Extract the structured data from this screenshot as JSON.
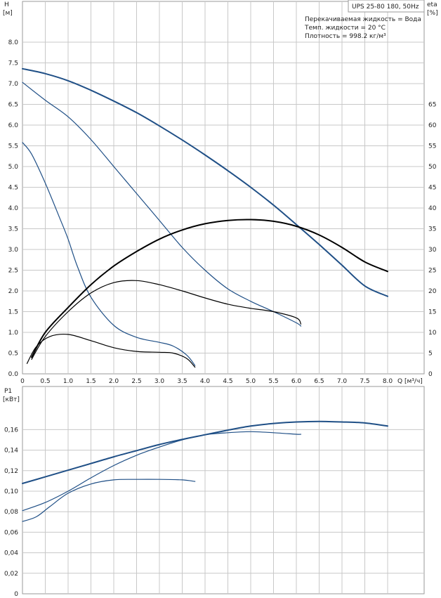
{
  "colors": {
    "pump": "#1f4f86",
    "efficiency": "#000000",
    "grid": "#c8c8c8"
  },
  "chart_data": [
    {
      "type": "line",
      "id": "head-eta",
      "model_label": "UPS 25-80 180, 50Hz",
      "annotations": [
        "Перекачиваемая жидкость = Вода",
        "Темп. жидкости = 20 °C",
        "Плотность = 998.2 кг/м³"
      ],
      "ylabel": "H",
      "yunit": "[м]",
      "y2label": "eta",
      "y2unit": "[%]",
      "xlabel": "Q",
      "xunit": "[м³/ч]",
      "xlim": [
        0,
        8.8
      ],
      "ylim": [
        0,
        8.8
      ],
      "y2lim": [
        0,
        88
      ],
      "xticks": [
        "0",
        "0.5",
        "1.0",
        "1.5",
        "2.0",
        "2.5",
        "3.0",
        "3.5",
        "4.0",
        "4.5",
        "5.0",
        "5.5",
        "6.0",
        "6.5",
        "7.0",
        "7.5",
        "8.0"
      ],
      "yticks": [
        "0.0",
        "0.5",
        "1.0",
        "1.5",
        "2.0",
        "2.5",
        "3.0",
        "3.5",
        "4.0",
        "4.5",
        "5.0",
        "5.5",
        "6.0",
        "6.5",
        "7.0",
        "7.5",
        "8.0"
      ],
      "y2ticks": [
        "0",
        "5",
        "10",
        "15",
        "20",
        "25",
        "30",
        "35",
        "40",
        "45",
        "50",
        "55",
        "60",
        "65"
      ],
      "grid": true,
      "series": [
        {
          "axis": "y",
          "role": "pump",
          "width": 2,
          "x": [
            0,
            0.5,
            1,
            1.5,
            2,
            2.5,
            3,
            3.5,
            4,
            4.5,
            5,
            5.5,
            6,
            6.5,
            7,
            7.5,
            8
          ],
          "y": [
            7.36,
            7.24,
            7.07,
            6.84,
            6.58,
            6.3,
            5.98,
            5.64,
            5.28,
            4.9,
            4.5,
            4.07,
            3.6,
            3.12,
            2.62,
            2.12,
            1.87
          ]
        },
        {
          "axis": "y",
          "role": "pump",
          "width": 1.2,
          "x": [
            0,
            0.5,
            1,
            1.5,
            2,
            2.5,
            3,
            3.5,
            4,
            4.5,
            5,
            5.5,
            6,
            6.1
          ],
          "y": [
            7.03,
            6.6,
            6.2,
            5.65,
            5.0,
            4.35,
            3.7,
            3.05,
            2.5,
            2.05,
            1.75,
            1.5,
            1.23,
            1.15
          ]
        },
        {
          "axis": "y",
          "role": "pump",
          "width": 1.2,
          "x": [
            0,
            0.2,
            0.5,
            0.8,
            1.0,
            1.2,
            1.5,
            2.0,
            2.5,
            3.0,
            3.3,
            3.6,
            3.78
          ],
          "y": [
            5.58,
            5.3,
            4.6,
            3.8,
            3.25,
            2.6,
            1.85,
            1.17,
            0.88,
            0.76,
            0.67,
            0.45,
            0.2
          ]
        },
        {
          "axis": "y2",
          "role": "efficiency",
          "width": 2,
          "x": [
            0.2,
            0.5,
            1,
            1.5,
            2,
            2.5,
            3,
            3.5,
            4,
            4.5,
            5,
            5.5,
            6,
            6.5,
            7,
            7.5,
            8
          ],
          "y": [
            4,
            10,
            16,
            21.5,
            26,
            29.5,
            32.5,
            34.7,
            36.2,
            37,
            37.2,
            36.8,
            35.6,
            33.5,
            30.5,
            27,
            24.7
          ]
        },
        {
          "axis": "y2",
          "role": "efficiency",
          "width": 1.2,
          "x": [
            0.2,
            0.5,
            1,
            1.5,
            2,
            2.5,
            3,
            3.5,
            4,
            4.5,
            5,
            5.5,
            6,
            6.1
          ],
          "y": [
            3.5,
            9,
            15,
            19.5,
            22,
            22.5,
            21.5,
            20,
            18.3,
            16.8,
            15.8,
            15,
            13.5,
            12
          ]
        },
        {
          "axis": "y2",
          "role": "efficiency",
          "width": 1.2,
          "x": [
            0.1,
            0.3,
            0.6,
            1.0,
            1.5,
            2.0,
            2.5,
            3.0,
            3.3,
            3.6,
            3.78
          ],
          "y": [
            2.5,
            6.5,
            9,
            9.5,
            8,
            6.3,
            5.4,
            5.2,
            5.0,
            3.7,
            1.6
          ]
        }
      ]
    },
    {
      "type": "line",
      "id": "power",
      "ylabel": "P1",
      "yunit": "[кВт]",
      "xlim": [
        0,
        8.8
      ],
      "ylim": [
        0,
        0.18
      ],
      "yticks": [
        "0",
        "0,02",
        "0,04",
        "0,06",
        "0,08",
        "0,10",
        "0,12",
        "0,14",
        "0,16"
      ],
      "grid": true,
      "series": [
        {
          "role": "pump",
          "width": 2,
          "x": [
            0,
            0.5,
            1,
            1.5,
            2,
            2.5,
            3,
            3.5,
            4,
            4.5,
            5,
            5.5,
            6,
            6.5,
            7,
            7.5,
            8
          ],
          "y": [
            0.1075,
            0.114,
            0.1205,
            0.127,
            0.1335,
            0.1395,
            0.1455,
            0.1505,
            0.155,
            0.1595,
            0.1635,
            0.166,
            0.1675,
            0.168,
            0.1675,
            0.1665,
            0.1635
          ]
        },
        {
          "role": "pump",
          "width": 1.2,
          "x": [
            0,
            0.5,
            1,
            1.5,
            2,
            2.5,
            3,
            3.5,
            4,
            4.5,
            5,
            5.5,
            6,
            6.1
          ],
          "y": [
            0.081,
            0.089,
            0.1,
            0.113,
            0.125,
            0.135,
            0.143,
            0.15,
            0.155,
            0.157,
            0.158,
            0.157,
            0.1555,
            0.1555
          ]
        },
        {
          "role": "pump",
          "width": 1.2,
          "x": [
            0,
            0.3,
            0.6,
            1.0,
            1.5,
            2.0,
            2.5,
            3.0,
            3.5,
            3.78
          ],
          "y": [
            0.0705,
            0.075,
            0.085,
            0.098,
            0.107,
            0.111,
            0.1115,
            0.1115,
            0.111,
            0.1095
          ]
        }
      ]
    }
  ]
}
